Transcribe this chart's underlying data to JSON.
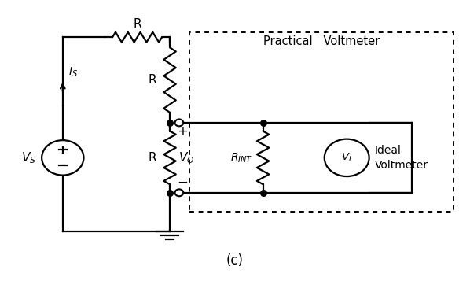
{
  "bg_color": "#ffffff",
  "line_color": "#000000",
  "fig_width": 5.98,
  "fig_height": 3.76,
  "dpi": 100,
  "caption": "(c)",
  "title_practical": "Practical   Voltmeter",
  "label_is": "$I_S$",
  "label_vs": "$V_S$",
  "label_r_top": "R",
  "label_r_mid": "R",
  "label_r_bot": "R",
  "label_vo": "$V_O$",
  "label_rint": "$R_{INT}$",
  "label_vi": "$V_I$",
  "label_ideal": "Ideal\nVoltmeter",
  "label_plus": "+",
  "label_minus": "−",
  "lw": 1.6
}
